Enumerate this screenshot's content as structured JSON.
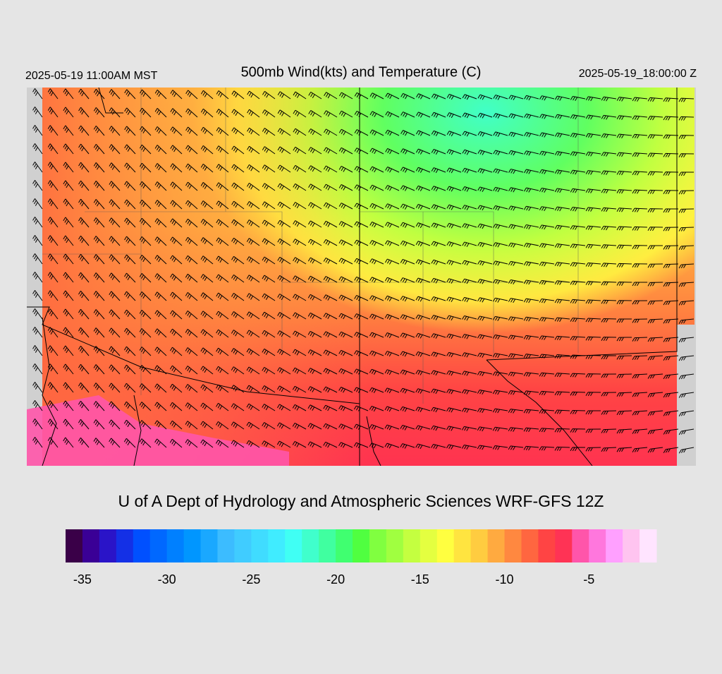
{
  "header": {
    "left": "2025-05-19 11:00AM MST",
    "title": "500mb Wind(kts) and Temperature (C)",
    "right": "2025-05-19_18:00:00 Z"
  },
  "credit": "U of A Dept of Hydrology and Atmospheric Sciences WRF-GFS 12Z",
  "colorbar": {
    "range": [
      -36,
      -1
    ],
    "ticks": [
      -35,
      -30,
      -25,
      -20,
      -15,
      -10,
      -5
    ],
    "colors": [
      "#3a0048",
      "#3a0096",
      "#2a14c8",
      "#1430e6",
      "#0050ff",
      "#0068ff",
      "#0080ff",
      "#0096ff",
      "#1aa8ff",
      "#3cbcff",
      "#40ccff",
      "#40dcff",
      "#40ecff",
      "#40fff4",
      "#40ffcc",
      "#40ffa0",
      "#40ff70",
      "#50ff40",
      "#80ff40",
      "#a0ff40",
      "#c4ff40",
      "#e4ff40",
      "#ffff40",
      "#ffe440",
      "#ffcc40",
      "#ffaa40",
      "#ff8840",
      "#ff6640",
      "#ff4444",
      "#ff3355",
      "#ff55aa",
      "#ff77dd",
      "#ffa0ff",
      "#ffc4f0",
      "#ffe4ff"
    ]
  }
}
